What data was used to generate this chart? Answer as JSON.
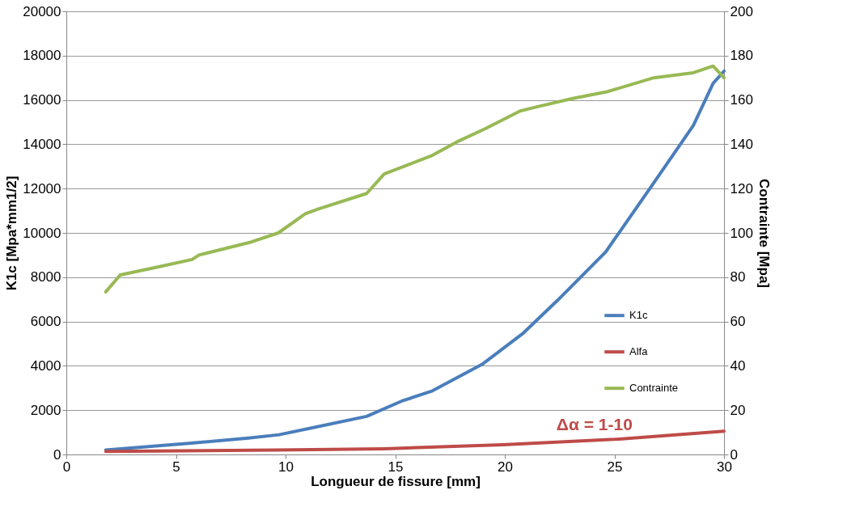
{
  "chart_data": {
    "type": "line",
    "xlabel": "Longueur de fissure [mm]",
    "ylabel": "K1c [Mpa*mm1/2]",
    "y2label": "Contrainte [Mpa]",
    "xlim": [
      0,
      30
    ],
    "xticks": [
      0,
      5,
      10,
      15,
      20,
      25,
      30
    ],
    "ylim": [
      0,
      20000
    ],
    "yticks": [
      0,
      2000,
      4000,
      6000,
      8000,
      10000,
      12000,
      14000,
      16000,
      18000,
      20000
    ],
    "y2lim": [
      0,
      200
    ],
    "y2ticks": [
      0,
      20,
      40,
      60,
      80,
      100,
      120,
      140,
      160,
      180,
      200
    ],
    "grid": "y",
    "legend": "right",
    "marker": "none",
    "line_style": "solid",
    "annotations": [
      "Δα = 1-10"
    ],
    "series": [
      {
        "name": "K1c",
        "color": "#4a7ebb",
        "x": [
          1.8,
          5.7,
          8.3,
          9.7,
          11.4,
          13.7,
          15.3,
          16.7,
          19.0,
          20.8,
          22.4,
          24.6,
          26.7,
          28.6,
          29.5,
          30
        ],
        "values": [
          200,
          510,
          740,
          890,
          1240,
          1720,
          2410,
          2870,
          4090,
          5440,
          6950,
          9140,
          12120,
          14850,
          16750,
          17300
        ]
      },
      {
        "name": "Alfa",
        "color": "#be4b48",
        "x": [
          1.8,
          9.6,
          14.5,
          19.9,
          25.0,
          30
        ],
        "values": [
          140,
          200,
          260,
          440,
          680,
          1050
        ]
      },
      {
        "name": "Contrainte",
        "color": "#98b954",
        "axis": "y2",
        "x": [
          1.8,
          2.46,
          4.2,
          5.74,
          6.05,
          8.33,
          9.67,
          10.9,
          11.5,
          13.7,
          14.5,
          16.7,
          17.8,
          19.1,
          20.7,
          21.5,
          23.1,
          24.7,
          26.8,
          28.6,
          29.5,
          30
        ],
        "values": [
          73.4,
          81,
          84.7,
          88,
          90,
          95.6,
          100,
          108.6,
          110.8,
          117.8,
          126.6,
          135,
          141,
          147,
          155,
          157,
          160.7,
          163.8,
          170,
          172.3,
          175.3,
          170
        ]
      }
    ]
  }
}
